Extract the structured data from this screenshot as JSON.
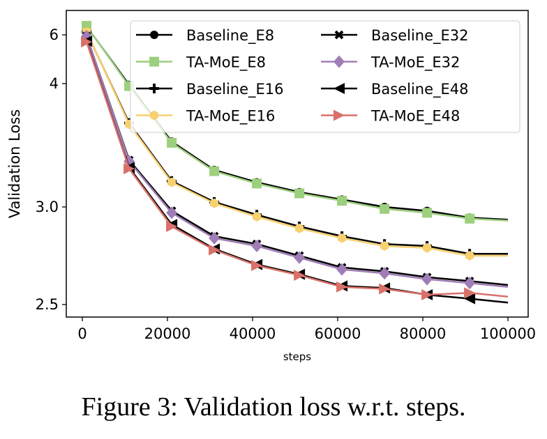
{
  "chart_data": {
    "type": "line",
    "title": "",
    "xlabel": "steps",
    "ylabel": "Validation Loss",
    "xlim": [
      0,
      100000
    ],
    "y_scale": "nonlinear (tick-interpolated)",
    "yticks": [
      6,
      4,
      3.0,
      2.5
    ],
    "ytick_labels": [
      "6",
      "4",
      "3.0",
      "2.5"
    ],
    "xticks": [
      0,
      20000,
      40000,
      60000,
      80000,
      100000
    ],
    "xtick_labels": [
      "0",
      "20000",
      "40000",
      "60000",
      "80000",
      "100000"
    ],
    "legend_position": "top-right",
    "grid": false,
    "x": [
      1000,
      11000,
      21000,
      31000,
      41000,
      51000,
      61000,
      71000,
      81000,
      91000,
      100000
    ],
    "series": [
      {
        "name": "Baseline_E8",
        "color": "#000000",
        "marker": "circle",
        "values": [
          6.35,
          3.99,
          3.53,
          3.3,
          3.2,
          3.12,
          3.06,
          3.0,
          2.98,
          2.945,
          2.935
        ]
      },
      {
        "name": "TA-MoE_E8",
        "color": "#9ccf7e",
        "marker": "square",
        "values": [
          6.37,
          3.98,
          3.52,
          3.29,
          3.19,
          3.11,
          3.05,
          2.99,
          2.97,
          2.94,
          2.93
        ]
      },
      {
        "name": "Baseline_E16",
        "color": "#000000",
        "marker": "plus",
        "values": [
          6.12,
          3.68,
          3.21,
          3.04,
          2.96,
          2.9,
          2.85,
          2.81,
          2.8,
          2.76,
          2.76
        ]
      },
      {
        "name": "TA-MoE_E16",
        "color": "#f7d070",
        "marker": "hexagon",
        "values": [
          6.14,
          3.67,
          3.2,
          3.03,
          2.95,
          2.89,
          2.84,
          2.8,
          2.79,
          2.75,
          2.75
        ]
      },
      {
        "name": "Baseline_E32",
        "color": "#000000",
        "marker": "x",
        "values": [
          5.95,
          3.38,
          2.98,
          2.85,
          2.81,
          2.75,
          2.69,
          2.67,
          2.64,
          2.62,
          2.6
        ]
      },
      {
        "name": "TA-MoE_E32",
        "color": "#a07db6",
        "marker": "diamond",
        "values": [
          5.94,
          3.37,
          2.97,
          2.84,
          2.8,
          2.74,
          2.68,
          2.66,
          2.63,
          2.61,
          2.59
        ]
      },
      {
        "name": "Baseline_E48",
        "color": "#000000",
        "marker": "triangle-left",
        "values": [
          5.74,
          3.32,
          2.91,
          2.785,
          2.705,
          2.655,
          2.595,
          2.585,
          2.55,
          2.53,
          2.51
        ]
      },
      {
        "name": "TA-MoE_E48",
        "color": "#d9706a",
        "marker": "triangle-right",
        "values": [
          5.71,
          3.31,
          2.9,
          2.78,
          2.7,
          2.65,
          2.59,
          2.58,
          2.55,
          2.56,
          2.54
        ]
      }
    ]
  },
  "caption": "Figure 3: Validation loss w.r.t. steps."
}
